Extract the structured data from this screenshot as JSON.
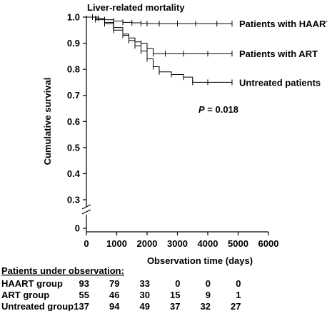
{
  "chart_data": {
    "type": "line",
    "title": "Liver-related mortality",
    "xlabel": "Observation time (days)",
    "ylabel": "Cumulative survival",
    "xlim": [
      0,
      6000
    ],
    "x_ticks": [
      "0",
      "1000",
      "2000",
      "3000",
      "4000",
      "5000",
      "6000"
    ],
    "y_ticks": [
      "0",
      "0.3",
      "0.4",
      "0.5",
      "0.6",
      "0.7",
      "0.8",
      "0.9",
      "1.0"
    ],
    "y_axis_break": true,
    "grid": false,
    "annotation_p": "P",
    "annotation_value": " = 0.018",
    "series": [
      {
        "name": "Patients with HAART",
        "x": [
          0,
          200,
          400,
          600,
          900,
          1200,
          1500,
          1800,
          2000,
          2400,
          3000,
          3600,
          4300,
          4800
        ],
        "y": [
          1.0,
          1.0,
          0.995,
          0.99,
          0.985,
          0.98,
          0.978,
          0.976,
          0.975,
          0.975,
          0.975,
          0.975,
          0.975,
          0.975
        ]
      },
      {
        "name": "Patients with ART",
        "x": [
          0,
          300,
          600,
          900,
          1200,
          1400,
          1600,
          1800,
          2000,
          2200,
          2600,
          3200,
          4000,
          4800
        ],
        "y": [
          1.0,
          0.995,
          0.98,
          0.96,
          0.935,
          0.92,
          0.905,
          0.9,
          0.88,
          0.86,
          0.86,
          0.86,
          0.86,
          0.86
        ]
      },
      {
        "name": "Untreated patients",
        "x": [
          0,
          300,
          600,
          900,
          1200,
          1400,
          1600,
          1800,
          2000,
          2200,
          2400,
          2800,
          3200,
          3500,
          4000,
          4800
        ],
        "y": [
          1.0,
          0.99,
          0.975,
          0.95,
          0.93,
          0.91,
          0.89,
          0.87,
          0.84,
          0.81,
          0.79,
          0.78,
          0.77,
          0.75,
          0.75,
          0.75
        ]
      }
    ]
  },
  "observation_table": {
    "heading": "Patients under observation:",
    "rows": [
      {
        "label": "HAART group",
        "values": [
          "93",
          "79",
          "33",
          "0",
          "0",
          "0"
        ]
      },
      {
        "label": "ART group",
        "values": [
          "55",
          "46",
          "30",
          "15",
          "9",
          "1"
        ]
      },
      {
        "label": "Untreated group",
        "values": [
          "137",
          "94",
          "49",
          "37",
          "32",
          "27"
        ]
      }
    ]
  }
}
